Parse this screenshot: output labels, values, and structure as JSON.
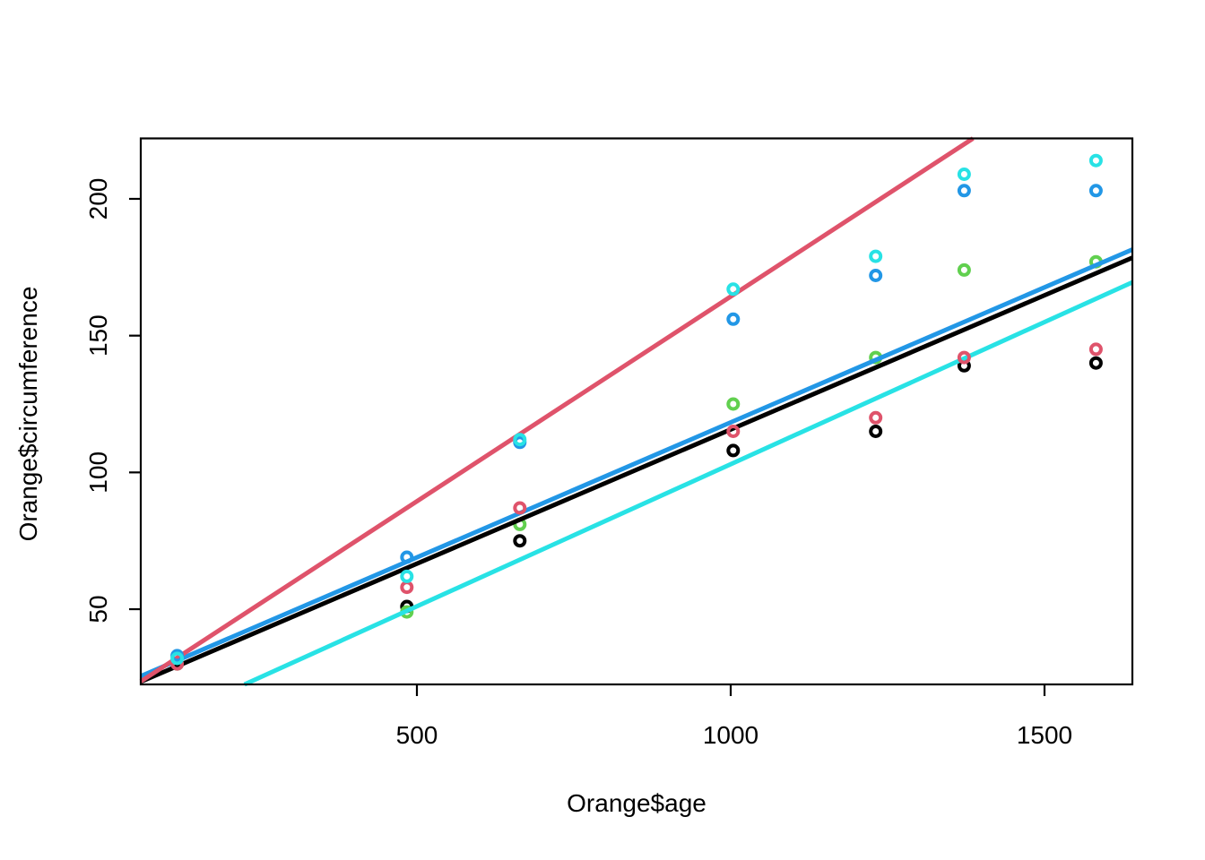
{
  "figure": {
    "background": "#ffffff"
  },
  "chart_data": {
    "type": "scatter",
    "title": "",
    "xlabel": "Orange$age",
    "ylabel": "Orange$circumference",
    "xlim": [
      60,
      1640
    ],
    "ylim": [
      22.5,
      222.1
    ],
    "x_ticks": [
      "500",
      "1000",
      "1500"
    ],
    "x_tick_values": [
      500,
      1000,
      1500
    ],
    "y_ticks": [
      "50",
      "100",
      "150",
      "200"
    ],
    "y_tick_values": [
      50,
      100,
      150,
      200
    ],
    "grid": false,
    "legend": "none",
    "box": true,
    "marker": "open-circle",
    "x": [
      118,
      484,
      664,
      1004,
      1231,
      1372,
      1582
    ],
    "series": [
      {
        "name": "tree-black-points",
        "color": "#000000",
        "under_lines": true,
        "values": [
          30,
          51,
          75,
          108,
          115,
          139,
          140
        ]
      },
      {
        "name": "tree-green-points",
        "color": "#61D04F",
        "under_lines": true,
        "values": [
          30,
          49,
          81,
          125,
          142,
          174,
          177
        ]
      },
      {
        "name": "tree-red-points",
        "color": "#DF536B",
        "under_lines": false,
        "values": [
          30,
          58,
          87,
          115,
          120,
          142,
          145
        ]
      },
      {
        "name": "tree-blue-points",
        "color": "#2297E6",
        "under_lines": false,
        "values": [
          33,
          69,
          111,
          156,
          172,
          203,
          203
        ]
      },
      {
        "name": "tree-cyan-points",
        "color": "#28E2E5",
        "under_lines": false,
        "values": [
          32,
          62,
          112,
          167,
          179,
          209,
          214
        ]
      }
    ],
    "fit_lines": [
      {
        "name": "fit-line-black",
        "color": "#000000",
        "intercept": 17.6,
        "slope": 0.0981
      },
      {
        "name": "fit-line-blue",
        "color": "#2297E6",
        "intercept": 19.6,
        "slope": 0.0987
      },
      {
        "name": "fit-line-cyan",
        "color": "#28E2E5",
        "intercept": -0.9,
        "slope": 0.1039
      },
      {
        "name": "fit-line-red",
        "color": "#DF536B",
        "intercept": 14.6,
        "slope": 0.1497
      }
    ]
  }
}
